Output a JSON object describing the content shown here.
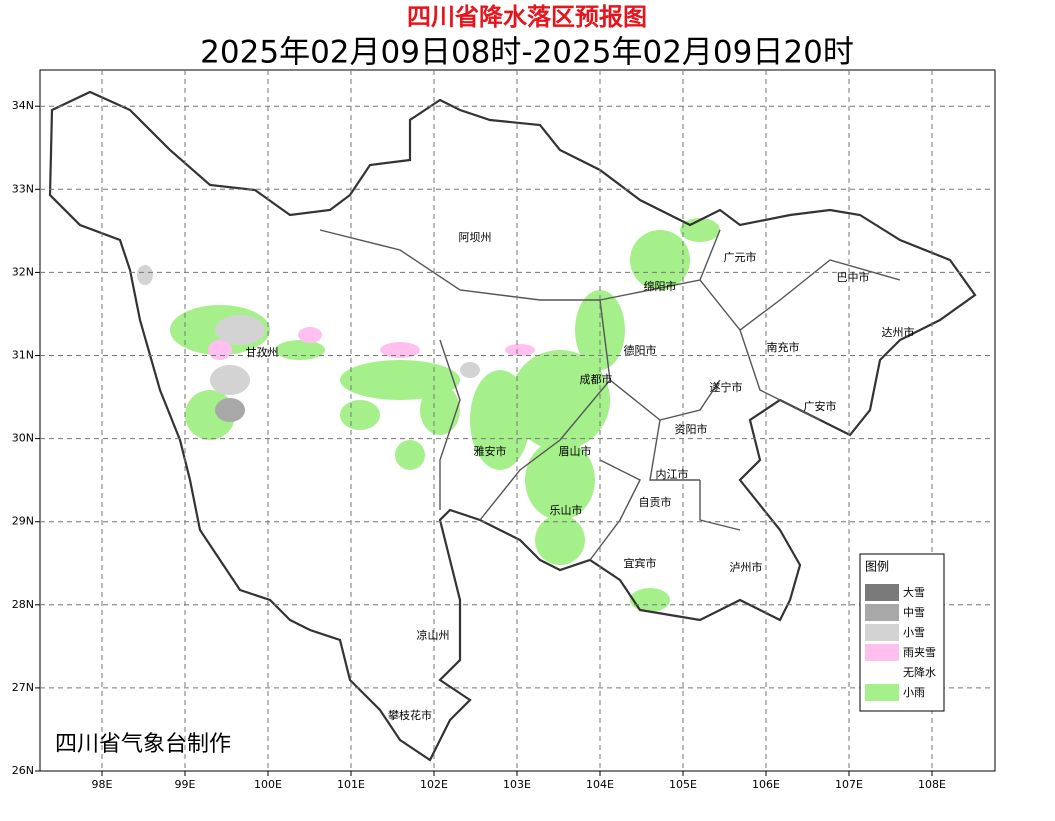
{
  "header": {
    "title": "四川省降水落区预报图",
    "subtitle": "2025年02月09日08时-2025年02月09日20时"
  },
  "map": {
    "x_ticks": [
      "98E",
      "99E",
      "100E",
      "101E",
      "102E",
      "103E",
      "104E",
      "105E",
      "106E",
      "107E",
      "108E"
    ],
    "y_ticks": [
      "26N",
      "27N",
      "28N",
      "29N",
      "30N",
      "31N",
      "32N",
      "33N",
      "34N"
    ],
    "places": [
      "阿坝州",
      "广元市",
      "巴中市",
      "绵阳市",
      "达州市",
      "甘孜州",
      "德阳市",
      "南充市",
      "成都市",
      "遂宁市",
      "广安市",
      "资阳市",
      "雅安市",
      "眉山市",
      "内江市",
      "自贡市",
      "乐山市",
      "宜宾市",
      "泸州市",
      "凉山州",
      "攀枝花市"
    ],
    "credit": "四川省气象台制作"
  },
  "legend": {
    "title": "图例",
    "items": [
      {
        "label": "大雪",
        "color": "#7a7a7a"
      },
      {
        "label": "中雪",
        "color": "#a8a8a8"
      },
      {
        "label": "小雪",
        "color": "#d3d3d3"
      },
      {
        "label": "雨夹雪",
        "color": "#ffbfef"
      },
      {
        "label": "无降水",
        "color": "#ffffff"
      },
      {
        "label": "小雨",
        "color": "#a6f08c"
      }
    ]
  }
}
